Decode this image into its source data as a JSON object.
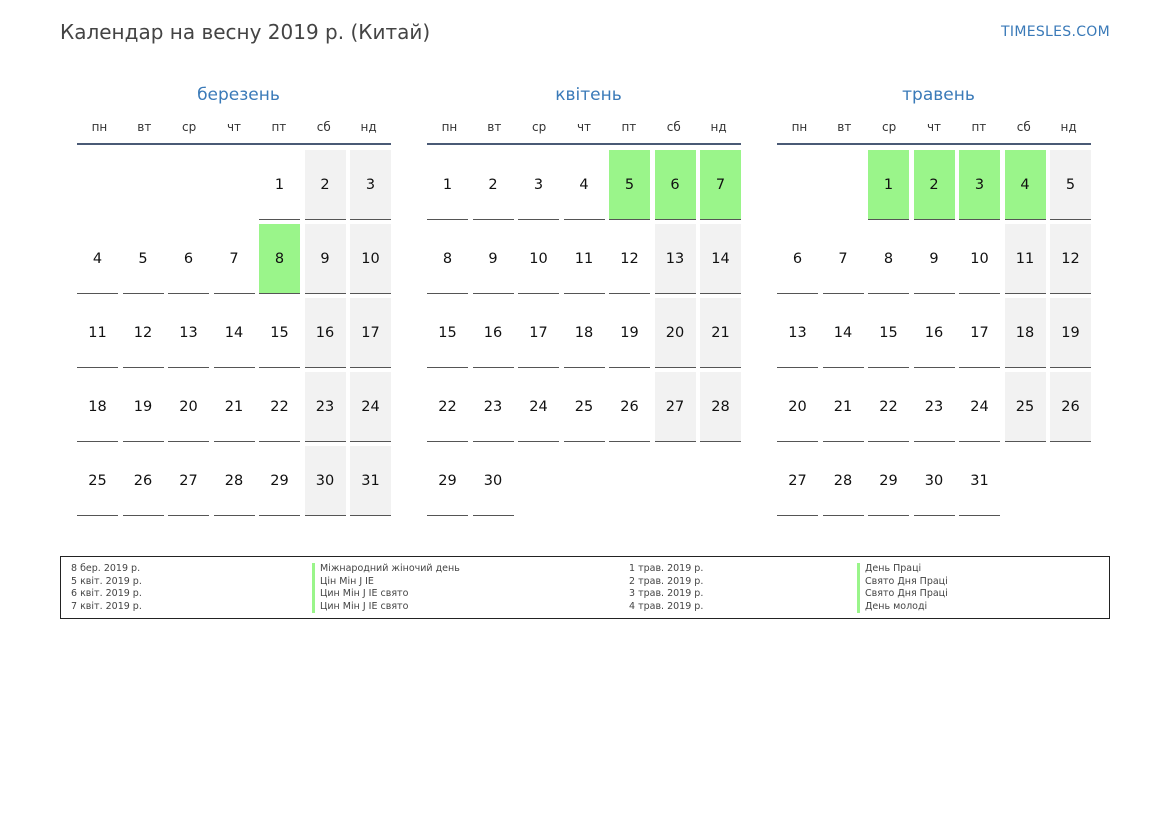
{
  "header": {
    "title": "Календар на весну 2019 р. (Китай)",
    "site": "TIMESLES.COM"
  },
  "weekdays": [
    "пн",
    "вт",
    "ср",
    "чт",
    "пт",
    "сб",
    "нд"
  ],
  "months": [
    {
      "name": "березень",
      "first_weekday": 4,
      "days": 31,
      "holidays": [
        8
      ]
    },
    {
      "name": "квітень",
      "first_weekday": 0,
      "days": 30,
      "holidays": [
        5,
        6,
        7
      ]
    },
    {
      "name": "травень",
      "first_weekday": 2,
      "days": 31,
      "holidays": [
        1,
        2,
        3,
        4
      ]
    }
  ],
  "legend": {
    "left": [
      {
        "date": "8 бер. 2019 р.",
        "name": "Міжнародний жіночий день"
      },
      {
        "date": "5 квіт. 2019 р.",
        "name": "Цін Мін Ј ІЕ"
      },
      {
        "date": "6 квіт. 2019 р.",
        "name": "Цин Мін Ј ІЕ свято"
      },
      {
        "date": "7 квіт. 2019 р.",
        "name": "Цин Мін Ј ІЕ свято"
      }
    ],
    "right": [
      {
        "date": "1 трав. 2019 р.",
        "name": "День Праці"
      },
      {
        "date": "2 трав. 2019 р.",
        "name": "Свято Дня Праці"
      },
      {
        "date": "3 трав. 2019 р.",
        "name": "Свято Дня Праці"
      },
      {
        "date": "4 трав. 2019 р.",
        "name": "День молоді"
      }
    ]
  },
  "colors": {
    "holiday": "#9af58a",
    "weekend": "#f2f2f2",
    "accent": "#3a7ab8"
  }
}
